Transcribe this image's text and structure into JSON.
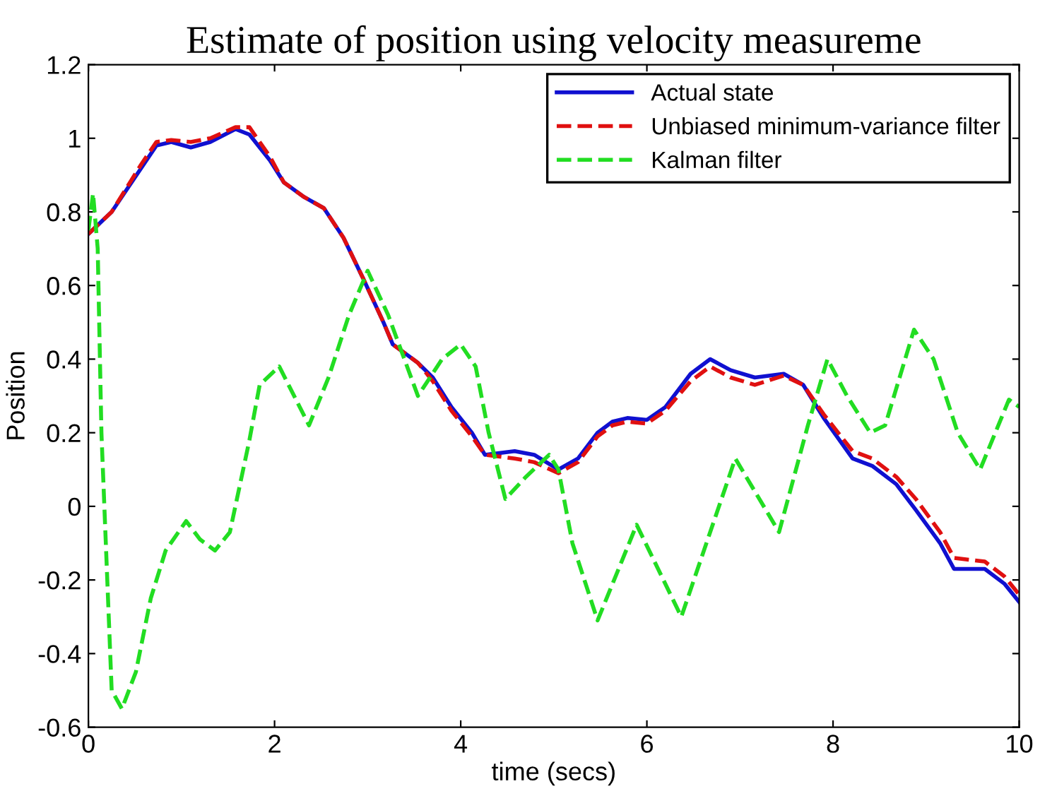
{
  "chart_data": {
    "type": "line",
    "title": "Estimate of position using velocity measureme",
    "xlabel": "time (secs)",
    "ylabel": "Position",
    "xlim": [
      0,
      10
    ],
    "xticks": [
      0,
      2,
      4,
      6,
      8,
      10
    ],
    "ylim": [
      -0.6,
      1.2
    ],
    "yticks": [
      -0.6,
      -0.4,
      -0.2,
      0,
      0.2,
      0.4,
      0.6,
      0.8,
      1,
      1.2
    ],
    "legend": "top right",
    "grid": false,
    "series": [
      {
        "name": "Actual state",
        "color": "#1010d0",
        "line_style": "solid",
        "x": [
          0,
          0.25,
          0.57,
          0.73,
          0.89,
          1.1,
          1.31,
          1.58,
          1.73,
          1.95,
          2.1,
          2.32,
          2.53,
          2.74,
          2.95,
          3.17,
          3.27,
          3.54,
          3.7,
          3.9,
          4.12,
          4.26,
          4.58,
          4.79,
          5.05,
          5.26,
          5.47,
          5.63,
          5.79,
          6.0,
          6.2,
          6.47,
          6.68,
          6.9,
          7.16,
          7.47,
          7.68,
          7.9,
          8.21,
          8.42,
          8.68,
          8.89,
          9.15,
          9.3,
          9.63,
          9.84,
          10
        ],
        "values": [
          0.74,
          0.8,
          0.92,
          0.98,
          0.99,
          0.975,
          0.99,
          1.025,
          1.01,
          0.94,
          0.88,
          0.84,
          0.81,
          0.73,
          0.62,
          0.5,
          0.44,
          0.39,
          0.35,
          0.27,
          0.2,
          0.14,
          0.15,
          0.14,
          0.1,
          0.13,
          0.2,
          0.23,
          0.24,
          0.235,
          0.27,
          0.36,
          0.4,
          0.37,
          0.35,
          0.36,
          0.33,
          0.24,
          0.13,
          0.11,
          0.06,
          -0.01,
          -0.1,
          -0.17,
          -0.17,
          -0.21,
          -0.26
        ]
      },
      {
        "name": "Unbiased minimum-variance filter",
        "color": "#e01010",
        "line_style": "dashed",
        "x": [
          0,
          0.25,
          0.57,
          0.73,
          0.89,
          1.1,
          1.31,
          1.58,
          1.73,
          1.95,
          2.1,
          2.32,
          2.53,
          2.74,
          2.95,
          3.17,
          3.27,
          3.54,
          3.7,
          3.9,
          4.12,
          4.26,
          4.58,
          4.79,
          5.05,
          5.26,
          5.47,
          5.63,
          5.79,
          6.0,
          6.2,
          6.47,
          6.68,
          6.9,
          7.16,
          7.47,
          7.68,
          7.9,
          8.21,
          8.42,
          8.68,
          8.89,
          9.15,
          9.3,
          9.63,
          9.84,
          10
        ],
        "values": [
          0.74,
          0.8,
          0.93,
          0.99,
          0.995,
          0.99,
          1.0,
          1.03,
          1.03,
          0.95,
          0.88,
          0.84,
          0.81,
          0.73,
          0.62,
          0.5,
          0.44,
          0.39,
          0.34,
          0.26,
          0.19,
          0.14,
          0.13,
          0.12,
          0.09,
          0.12,
          0.19,
          0.22,
          0.23,
          0.225,
          0.26,
          0.34,
          0.38,
          0.35,
          0.33,
          0.355,
          0.33,
          0.25,
          0.15,
          0.13,
          0.08,
          0.02,
          -0.07,
          -0.14,
          -0.15,
          -0.19,
          -0.24
        ]
      },
      {
        "name": "Kalman filter",
        "color": "#22dd22",
        "line_style": "dashed",
        "x": [
          0,
          0.05,
          0.1,
          0.14,
          0.25,
          0.36,
          0.51,
          0.67,
          0.83,
          1.05,
          1.2,
          1.36,
          1.52,
          1.73,
          1.84,
          2.05,
          2.37,
          2.58,
          2.8,
          3.0,
          3.22,
          3.54,
          3.8,
          4.0,
          4.16,
          4.3,
          4.48,
          4.7,
          4.95,
          5.05,
          5.2,
          5.47,
          5.89,
          6.37,
          6.95,
          7.42,
          7.73,
          7.94,
          8.15,
          8.4,
          8.56,
          8.87,
          9.08,
          9.34,
          9.58,
          9.89,
          10
        ],
        "values": [
          0.75,
          0.85,
          0.7,
          0.2,
          -0.5,
          -0.55,
          -0.45,
          -0.25,
          -0.12,
          -0.04,
          -0.09,
          -0.12,
          -0.07,
          0.18,
          0.33,
          0.38,
          0.22,
          0.35,
          0.52,
          0.64,
          0.52,
          0.3,
          0.4,
          0.44,
          0.38,
          0.2,
          0.02,
          0.08,
          0.14,
          0.1,
          -0.1,
          -0.31,
          -0.05,
          -0.3,
          0.13,
          -0.07,
          0.22,
          0.4,
          0.3,
          0.2,
          0.22,
          0.48,
          0.4,
          0.2,
          0.1,
          0.29,
          0.27
        ]
      }
    ]
  }
}
